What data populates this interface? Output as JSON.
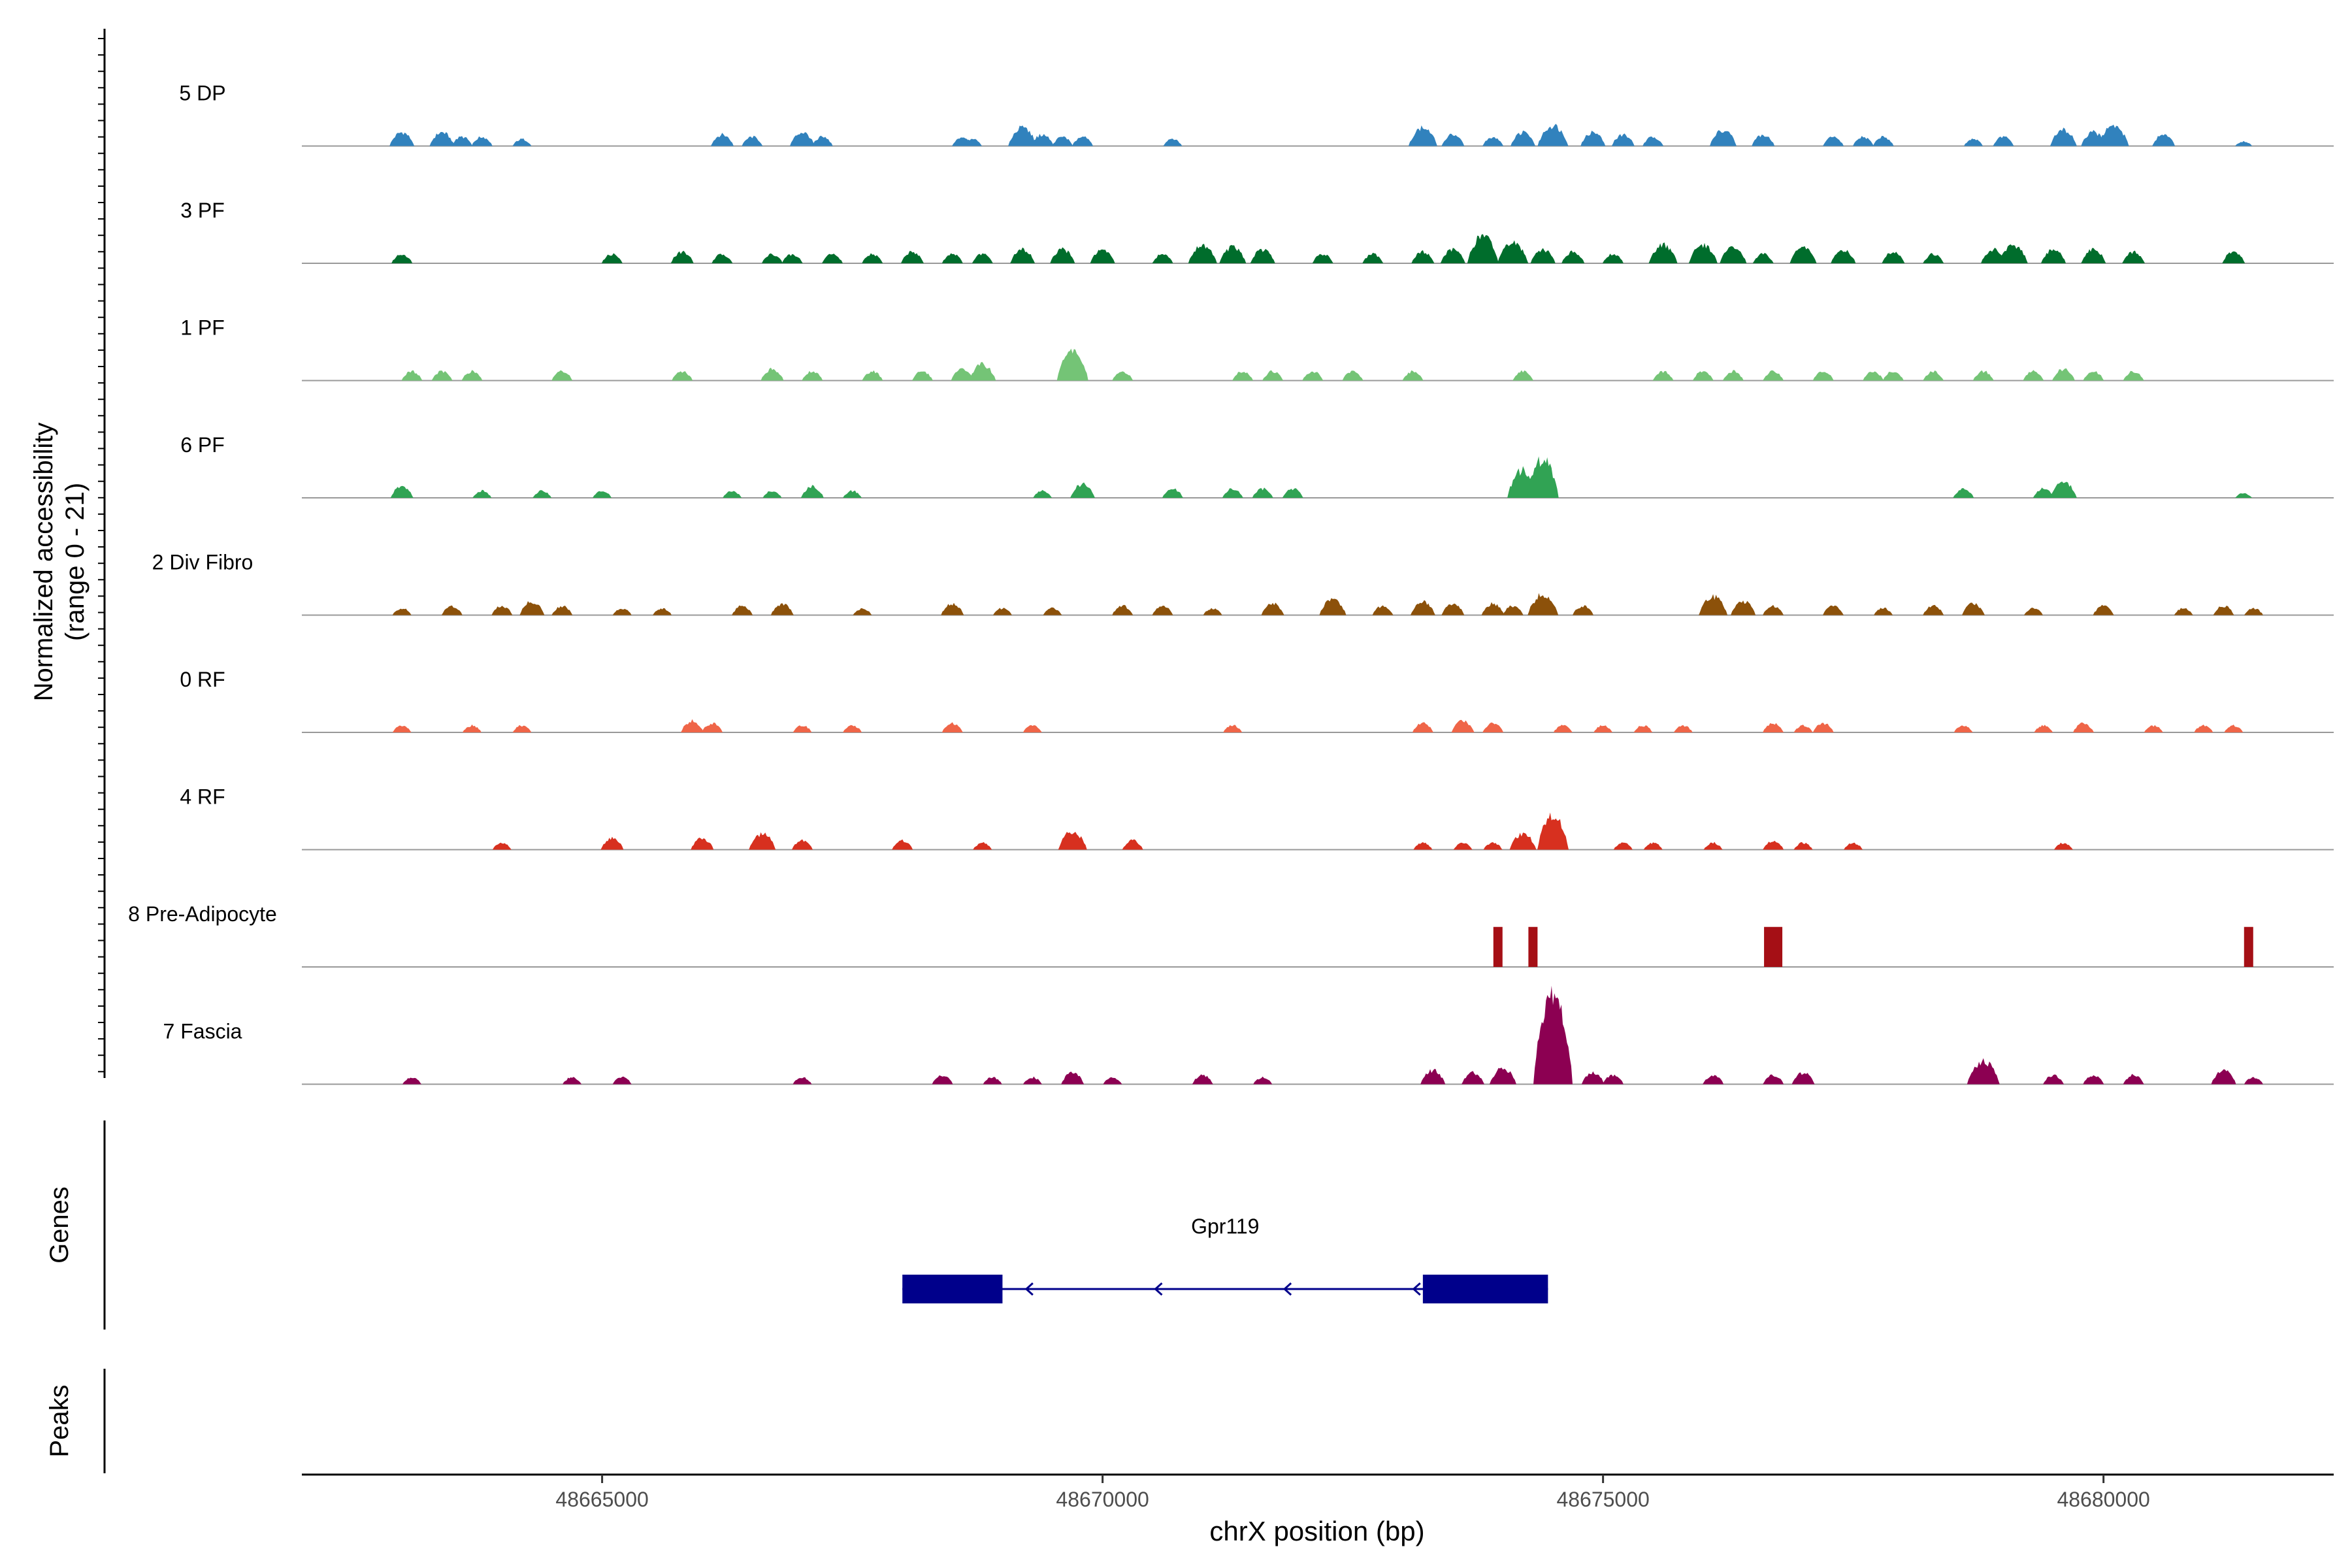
{
  "chart_data": {
    "type": "area",
    "title": "",
    "xlabel": "chrX position (bp)",
    "ylabel": "Normalized accessibility",
    "ylabel_range": "(range 0 - 21)",
    "xlim": [
      48662000,
      48682300
    ],
    "ylim": [
      0,
      21
    ],
    "x_ticks": [
      48665000,
      48670000,
      48675000,
      48680000
    ],
    "x_tick_labels": [
      "48665000",
      "48670000",
      "48675000",
      "48680000"
    ],
    "panel_labels": {
      "genes": "Genes",
      "peaks": "Peaks"
    },
    "series": [
      {
        "name": "5 DP",
        "color": "#3182bd",
        "peaks": [
          [
            48663000,
            3
          ],
          [
            48663400,
            3
          ],
          [
            48663600,
            2
          ],
          [
            48663800,
            2
          ],
          [
            48664200,
            1.5
          ],
          [
            48666200,
            2.5
          ],
          [
            48666500,
            2
          ],
          [
            48667000,
            3
          ],
          [
            48667200,
            2
          ],
          [
            48668600,
            2
          ],
          [
            48668700,
            1.5
          ],
          [
            48669200,
            4
          ],
          [
            48669400,
            2.5
          ],
          [
            48669600,
            2
          ],
          [
            48669800,
            2
          ],
          [
            48670700,
            1.5
          ],
          [
            48673200,
            4
          ],
          [
            48673500,
            2.5
          ],
          [
            48673900,
            2
          ],
          [
            48674200,
            3
          ],
          [
            48674500,
            4.5
          ],
          [
            48674900,
            3
          ],
          [
            48675200,
            2.5
          ],
          [
            48675500,
            2
          ],
          [
            48676200,
            3.5
          ],
          [
            48676600,
            2.5
          ],
          [
            48677300,
            2
          ],
          [
            48677600,
            2
          ],
          [
            48677800,
            2
          ],
          [
            48678700,
            1.5
          ],
          [
            48679000,
            2
          ],
          [
            48679600,
            3.5
          ],
          [
            48679900,
            3
          ],
          [
            48680100,
            4.5
          ],
          [
            48680600,
            2.5
          ],
          [
            48681400,
            1
          ]
        ]
      },
      {
        "name": "3 PF",
        "color": "#006d2c",
        "peaks": [
          [
            48663000,
            2
          ],
          [
            48665100,
            2
          ],
          [
            48665800,
            2.5
          ],
          [
            48666200,
            2
          ],
          [
            48666700,
            2
          ],
          [
            48666900,
            2
          ],
          [
            48667300,
            2
          ],
          [
            48667700,
            2
          ],
          [
            48668100,
            2.5
          ],
          [
            48668500,
            2
          ],
          [
            48668800,
            2
          ],
          [
            48669200,
            3
          ],
          [
            48669600,
            3
          ],
          [
            48670000,
            3
          ],
          [
            48670600,
            2
          ],
          [
            48671000,
            4
          ],
          [
            48671300,
            3.5
          ],
          [
            48671600,
            3
          ],
          [
            48672200,
            2
          ],
          [
            48672700,
            2
          ],
          [
            48673200,
            2.5
          ],
          [
            48673500,
            3
          ],
          [
            48673800,
            6
          ],
          [
            48674100,
            4.5
          ],
          [
            48674400,
            3
          ],
          [
            48674700,
            2.5
          ],
          [
            48675100,
            2
          ],
          [
            48675600,
            4
          ],
          [
            48676000,
            4
          ],
          [
            48676300,
            3.5
          ],
          [
            48676600,
            2
          ],
          [
            48677000,
            3.5
          ],
          [
            48677400,
            3
          ],
          [
            48677900,
            2.5
          ],
          [
            48678300,
            2
          ],
          [
            48678900,
            3
          ],
          [
            48679100,
            4
          ],
          [
            48679500,
            3
          ],
          [
            48679900,
            3
          ],
          [
            48680300,
            2.5
          ],
          [
            48681300,
            2.5
          ]
        ]
      },
      {
        "name": "1 PF",
        "color": "#74c476",
        "peaks": [
          [
            48663100,
            2
          ],
          [
            48663400,
            2
          ],
          [
            48663700,
            2
          ],
          [
            48664600,
            2
          ],
          [
            48665800,
            2
          ],
          [
            48666700,
            2.5
          ],
          [
            48667100,
            2
          ],
          [
            48667700,
            2
          ],
          [
            48668200,
            2
          ],
          [
            48668600,
            2.5
          ],
          [
            48668800,
            3.5
          ],
          [
            48669700,
            6.5
          ],
          [
            48670200,
            2
          ],
          [
            48671400,
            2
          ],
          [
            48671700,
            2
          ],
          [
            48672100,
            2
          ],
          [
            48672500,
            2
          ],
          [
            48673100,
            2
          ],
          [
            48674200,
            2
          ],
          [
            48675600,
            2
          ],
          [
            48676000,
            2
          ],
          [
            48676300,
            2
          ],
          [
            48676700,
            2
          ],
          [
            48677200,
            2
          ],
          [
            48677700,
            2
          ],
          [
            48677900,
            2
          ],
          [
            48678300,
            2
          ],
          [
            48678800,
            2
          ],
          [
            48679300,
            2
          ],
          [
            48679600,
            2.5
          ],
          [
            48679900,
            2
          ],
          [
            48680300,
            2
          ]
        ]
      },
      {
        "name": "6 PF",
        "color": "#31a354",
        "peaks": [
          [
            48663000,
            2.5
          ],
          [
            48663800,
            1.5
          ],
          [
            48664400,
            1.5
          ],
          [
            48665000,
            1.5
          ],
          [
            48666300,
            1.5
          ],
          [
            48666700,
            1.5
          ],
          [
            48667100,
            2.5
          ],
          [
            48667500,
            1.5
          ],
          [
            48669400,
            1.5
          ],
          [
            48669800,
            3
          ],
          [
            48670700,
            2
          ],
          [
            48671300,
            2
          ],
          [
            48671600,
            2
          ],
          [
            48671900,
            2
          ],
          [
            48674200,
            6
          ],
          [
            48674400,
            8.5
          ],
          [
            48678600,
            2
          ],
          [
            48679400,
            2
          ],
          [
            48679600,
            3.5
          ],
          [
            48681400,
            1
          ]
        ]
      },
      {
        "name": "2 Div Fibro",
        "color": "#8c510a",
        "peaks": [
          [
            48663000,
            1.5
          ],
          [
            48663500,
            2
          ],
          [
            48664000,
            2
          ],
          [
            48664300,
            3
          ],
          [
            48664600,
            2
          ],
          [
            48665200,
            1.5
          ],
          [
            48665600,
            1.5
          ],
          [
            48666400,
            2
          ],
          [
            48666800,
            2.5
          ],
          [
            48667600,
            1.5
          ],
          [
            48668500,
            2.5
          ],
          [
            48669000,
            1.5
          ],
          [
            48669500,
            1.5
          ],
          [
            48670200,
            2
          ],
          [
            48670600,
            2
          ],
          [
            48671100,
            1.5
          ],
          [
            48671700,
            2.5
          ],
          [
            48672300,
            3.5
          ],
          [
            48672800,
            2
          ],
          [
            48673200,
            3
          ],
          [
            48673500,
            2.5
          ],
          [
            48673900,
            2.5
          ],
          [
            48674100,
            2
          ],
          [
            48674400,
            4.5
          ],
          [
            48674800,
            2
          ],
          [
            48676100,
            4
          ],
          [
            48676400,
            3
          ],
          [
            48676700,
            2
          ],
          [
            48677300,
            2
          ],
          [
            48677800,
            1.5
          ],
          [
            48678300,
            2
          ],
          [
            48678700,
            2.5
          ],
          [
            48679300,
            1.5
          ],
          [
            48680000,
            2
          ],
          [
            48680800,
            1.5
          ],
          [
            48681200,
            2
          ],
          [
            48681500,
            1.5
          ]
        ]
      },
      {
        "name": "0 RF",
        "color": "#ef6548",
        "peaks": [
          [
            48663000,
            1.5
          ],
          [
            48663700,
            1.5
          ],
          [
            48664200,
            1.5
          ],
          [
            48665900,
            2.5
          ],
          [
            48666100,
            2
          ],
          [
            48667000,
            1.5
          ],
          [
            48667500,
            1.5
          ],
          [
            48668500,
            2
          ],
          [
            48669300,
            1.5
          ],
          [
            48671300,
            1.5
          ],
          [
            48673200,
            2
          ],
          [
            48673600,
            2.5
          ],
          [
            48673900,
            2
          ],
          [
            48674600,
            1.5
          ],
          [
            48675000,
            1.5
          ],
          [
            48675400,
            1.5
          ],
          [
            48675800,
            1.5
          ],
          [
            48676700,
            2
          ],
          [
            48677000,
            1.5
          ],
          [
            48677200,
            2
          ],
          [
            48678600,
            1.5
          ],
          [
            48679400,
            1.5
          ],
          [
            48679800,
            2
          ],
          [
            48680500,
            1.5
          ],
          [
            48681000,
            1.5
          ],
          [
            48681300,
            1.5
          ]
        ]
      },
      {
        "name": "4 RF",
        "color": "#d7301f",
        "peaks": [
          [
            48664000,
            1.5
          ],
          [
            48665100,
            2.5
          ],
          [
            48666000,
            2.5
          ],
          [
            48666600,
            3.5
          ],
          [
            48667000,
            2
          ],
          [
            48668000,
            2
          ],
          [
            48668800,
            1.5
          ],
          [
            48669700,
            4
          ],
          [
            48670300,
            2
          ],
          [
            48673200,
            1.5
          ],
          [
            48673600,
            1.5
          ],
          [
            48673900,
            1.5
          ],
          [
            48674200,
            3.5
          ],
          [
            48674500,
            7.5
          ],
          [
            48675200,
            1.5
          ],
          [
            48675500,
            1.5
          ],
          [
            48676100,
            1.5
          ],
          [
            48676700,
            2
          ],
          [
            48677000,
            1.5
          ],
          [
            48677500,
            1.5
          ],
          [
            48679600,
            1.5
          ]
        ]
      },
      {
        "name": "8 Pre-Adipocyte",
        "color": "#a50f15",
        "peaks": [
          [
            48673950,
            7.5
          ],
          [
            48674300,
            7.5
          ],
          [
            48676700,
            7.5
          ],
          [
            48681450,
            7.5
          ]
        ]
      },
      {
        "name": "7 Fascia",
        "color": "#8c0052",
        "peaks": [
          [
            48663100,
            1.5
          ],
          [
            48664700,
            1.5
          ],
          [
            48665200,
            1.5
          ],
          [
            48667000,
            1.5
          ],
          [
            48668400,
            2
          ],
          [
            48668900,
            1.5
          ],
          [
            48669300,
            1.5
          ],
          [
            48669700,
            2.5
          ],
          [
            48670100,
            1.5
          ],
          [
            48671000,
            2
          ],
          [
            48671600,
            1.5
          ],
          [
            48673300,
            3
          ],
          [
            48673700,
            2.5
          ],
          [
            48674000,
            3.5
          ],
          [
            48674500,
            21
          ],
          [
            48674900,
            2.5
          ],
          [
            48675100,
            2
          ],
          [
            48676100,
            2
          ],
          [
            48676700,
            2
          ],
          [
            48677000,
            2.5
          ],
          [
            48678800,
            5
          ],
          [
            48679500,
            2
          ],
          [
            48679900,
            2
          ],
          [
            48680300,
            2
          ],
          [
            48681200,
            3
          ],
          [
            48681500,
            1.5
          ]
        ]
      }
    ],
    "genes": [
      {
        "name": "Gpr119",
        "strand": "-",
        "exons": [
          [
            48668000,
            48669000
          ],
          [
            48673200,
            48674450
          ]
        ],
        "span": [
          48668000,
          48674450
        ]
      }
    ],
    "peaks_track": []
  }
}
